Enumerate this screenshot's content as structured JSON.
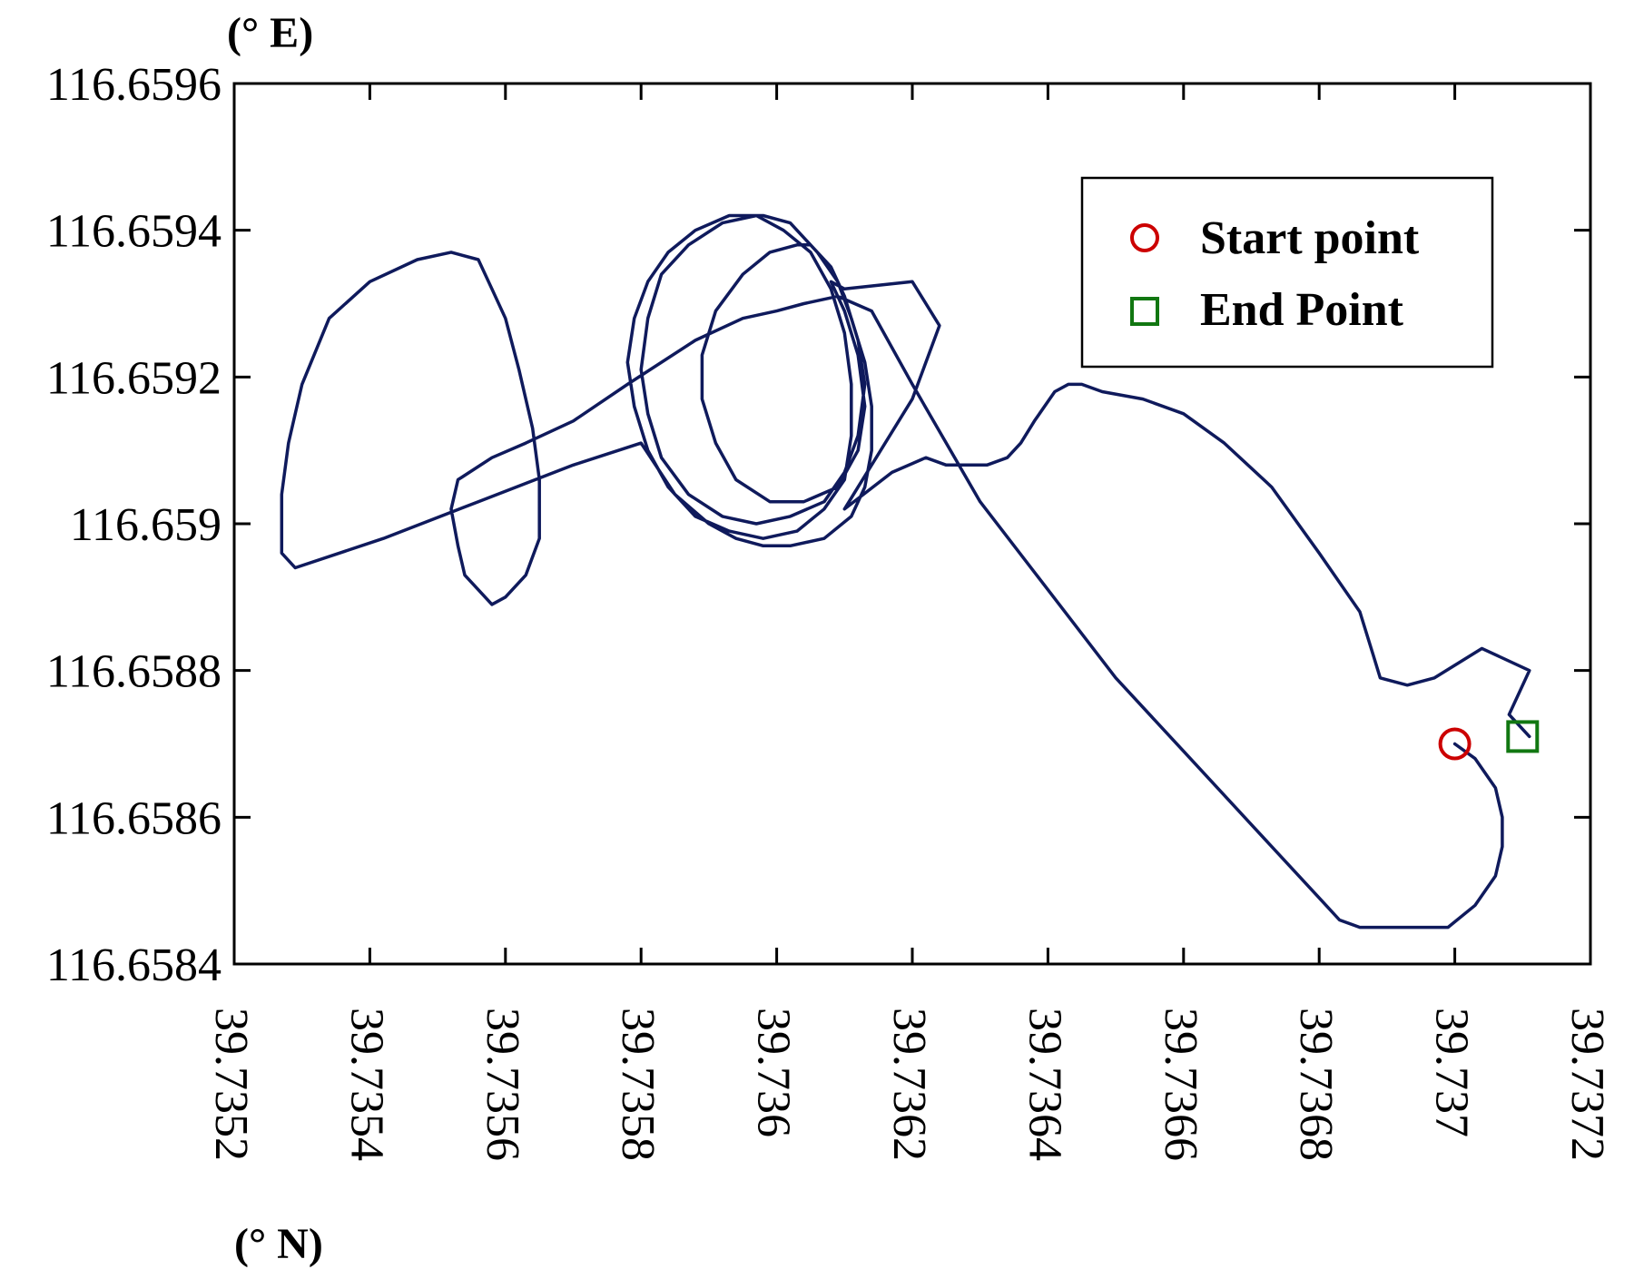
{
  "chart_data": {
    "type": "line",
    "title": "",
    "xlabel": "(°  N)",
    "ylabel": "(°  E)",
    "xlim": [
      39.7352,
      39.7372
    ],
    "ylim": [
      116.6584,
      116.6596
    ],
    "xticks": [
      "39.7352",
      "39.7354",
      "39.7356",
      "39.7358",
      "39.736",
      "39.7362",
      "39.7364",
      "39.7366",
      "39.7368",
      "39.737",
      "39.7372"
    ],
    "yticks": [
      "116.6584",
      "116.6586",
      "116.6588",
      "116.659",
      "116.6592",
      "116.6594",
      "116.6596"
    ],
    "grid": false,
    "legend": {
      "position": "top-right",
      "entries": [
        {
          "label": "Start point",
          "marker": "circle",
          "color": "#cc0000"
        },
        {
          "label": "End Point",
          "marker": "square",
          "color": "#117711"
        }
      ]
    },
    "line_color": "#0f1a5c",
    "start_point": {
      "x": 39.737,
      "y": 116.6587
    },
    "end_point": {
      "x": 39.7371,
      "y": 116.65871
    },
    "series": [
      {
        "name": "trajectory",
        "points": [
          [
            39.737,
            116.6587
          ],
          [
            39.73703,
            116.65868
          ],
          [
            39.73706,
            116.65864
          ],
          [
            39.73707,
            116.6586
          ],
          [
            39.73707,
            116.65856
          ],
          [
            39.73706,
            116.65852
          ],
          [
            39.73703,
            116.65848
          ],
          [
            39.73699,
            116.65845
          ],
          [
            39.73693,
            116.65845
          ],
          [
            39.73686,
            116.65845
          ],
          [
            39.73683,
            116.65846
          ],
          [
            39.73681,
            116.65848
          ],
          [
            39.7368,
            116.65849
          ],
          [
            39.7367,
            116.65859
          ],
          [
            39.7366,
            116.65869
          ],
          [
            39.7365,
            116.65879
          ],
          [
            39.7364,
            116.65891
          ],
          [
            39.7363,
            116.65903
          ],
          [
            39.7362,
            116.65919
          ],
          [
            39.73614,
            116.65929
          ],
          [
            39.73609,
            116.65931
          ],
          [
            39.73604,
            116.6593
          ],
          [
            39.736,
            116.65929
          ],
          [
            39.73595,
            116.65928
          ],
          [
            39.73588,
            116.65925
          ],
          [
            39.73578,
            116.65919
          ],
          [
            39.7357,
            116.65914
          ],
          [
            39.73563,
            116.65911
          ],
          [
            39.73558,
            116.65909
          ],
          [
            39.73553,
            116.65906
          ],
          [
            39.73552,
            116.65902
          ],
          [
            39.73553,
            116.65897
          ],
          [
            39.73554,
            116.65893
          ],
          [
            39.73556,
            116.65891
          ],
          [
            39.73558,
            116.65889
          ],
          [
            39.7356,
            116.6589
          ],
          [
            39.73563,
            116.65893
          ],
          [
            39.73565,
            116.65898
          ],
          [
            39.73565,
            116.65906
          ],
          [
            39.73564,
            116.65913
          ],
          [
            39.73562,
            116.65921
          ],
          [
            39.7356,
            116.65928
          ],
          [
            39.73558,
            116.65932
          ],
          [
            39.73556,
            116.65936
          ],
          [
            39.73552,
            116.65937
          ],
          [
            39.73547,
            116.65936
          ],
          [
            39.7354,
            116.65933
          ],
          [
            39.73534,
            116.65928
          ],
          [
            39.7353,
            116.65919
          ],
          [
            39.73528,
            116.65911
          ],
          [
            39.73527,
            116.65904
          ],
          [
            39.73527,
            116.65896
          ],
          [
            39.73529,
            116.65894
          ],
          [
            39.73542,
            116.65898
          ],
          [
            39.73556,
            116.65903
          ],
          [
            39.7357,
            116.65908
          ],
          [
            39.7358,
            116.65911
          ],
          [
            39.73585,
            116.65904
          ],
          [
            39.7359,
            116.659
          ],
          [
            39.73594,
            116.65898
          ],
          [
            39.73598,
            116.65897
          ],
          [
            39.73602,
            116.65897
          ],
          [
            39.73607,
            116.65898
          ],
          [
            39.73611,
            116.65901
          ],
          [
            39.73613,
            116.65905
          ],
          [
            39.73614,
            116.6591
          ],
          [
            39.73614,
            116.65916
          ],
          [
            39.73613,
            116.65922
          ],
          [
            39.73611,
            116.65928
          ],
          [
            39.73609,
            116.65933
          ],
          [
            39.73606,
            116.65937
          ],
          [
            39.73602,
            116.65941
          ],
          [
            39.73598,
            116.65942
          ],
          [
            39.73593,
            116.65942
          ],
          [
            39.73588,
            116.6594
          ],
          [
            39.73584,
            116.65937
          ],
          [
            39.73581,
            116.65933
          ],
          [
            39.73579,
            116.65928
          ],
          [
            39.73578,
            116.65922
          ],
          [
            39.73579,
            116.65916
          ],
          [
            39.73581,
            116.6591
          ],
          [
            39.73584,
            116.65905
          ],
          [
            39.73588,
            116.65901
          ],
          [
            39.73593,
            116.65899
          ],
          [
            39.73598,
            116.65898
          ],
          [
            39.73603,
            116.65899
          ],
          [
            39.73607,
            116.65902
          ],
          [
            39.7361,
            116.65906
          ],
          [
            39.73611,
            116.65912
          ],
          [
            39.73611,
            116.65919
          ],
          [
            39.7361,
            116.65926
          ],
          [
            39.73608,
            116.65932
          ],
          [
            39.73605,
            116.65937
          ],
          [
            39.73601,
            116.6594
          ],
          [
            39.73597,
            116.65942
          ],
          [
            39.73592,
            116.65941
          ],
          [
            39.73587,
            116.65938
          ],
          [
            39.73583,
            116.65934
          ],
          [
            39.73581,
            116.65928
          ],
          [
            39.7358,
            116.65921
          ],
          [
            39.73581,
            116.65915
          ],
          [
            39.73583,
            116.65909
          ],
          [
            39.73587,
            116.65904
          ],
          [
            39.73592,
            116.65901
          ],
          [
            39.73597,
            116.659
          ],
          [
            39.73602,
            116.65901
          ],
          [
            39.73607,
            116.65903
          ],
          [
            39.7361,
            116.65907
          ],
          [
            39.73612,
            116.65912
          ],
          [
            39.73613,
            116.65919
          ],
          [
            39.73612,
            116.65925
          ],
          [
            39.7361,
            116.65931
          ],
          [
            39.73608,
            116.65935
          ],
          [
            39.73605,
            116.65938
          ],
          [
            39.73603,
            116.65938
          ],
          [
            39.73599,
            116.65937
          ],
          [
            39.73595,
            116.65934
          ],
          [
            39.73591,
            116.65929
          ],
          [
            39.73589,
            116.65923
          ],
          [
            39.73589,
            116.65917
          ],
          [
            39.73591,
            116.65911
          ],
          [
            39.73594,
            116.65906
          ],
          [
            39.73599,
            116.65903
          ],
          [
            39.73604,
            116.65903
          ],
          [
            39.73609,
            116.65905
          ],
          [
            39.73612,
            116.6591
          ],
          [
            39.73613,
            116.65916
          ],
          [
            39.73612,
            116.65923
          ],
          [
            39.7361,
            116.65929
          ],
          [
            39.73608,
            116.65933
          ],
          [
            39.7361,
            116.65932
          ],
          [
            39.7362,
            116.65933
          ],
          [
            39.73624,
            116.65927
          ],
          [
            39.7362,
            116.65917
          ],
          [
            39.73612,
            116.65905
          ],
          [
            39.7361,
            116.65902
          ],
          [
            39.73617,
            116.65907
          ],
          [
            39.73622,
            116.65909
          ],
          [
            39.73625,
            116.65908
          ],
          [
            39.73629,
            116.65908
          ],
          [
            39.73631,
            116.65908
          ],
          [
            39.73634,
            116.65909
          ],
          [
            39.73636,
            116.65911
          ],
          [
            39.73638,
            116.65914
          ],
          [
            39.73641,
            116.65918
          ],
          [
            39.73643,
            116.65919
          ],
          [
            39.73645,
            116.65919
          ],
          [
            39.73648,
            116.65918
          ],
          [
            39.73654,
            116.65917
          ],
          [
            39.7366,
            116.65915
          ],
          [
            39.73666,
            116.65911
          ],
          [
            39.73673,
            116.65905
          ],
          [
            39.7368,
            116.65896
          ],
          [
            39.73686,
            116.65888
          ],
          [
            39.73688,
            116.65882
          ],
          [
            39.73689,
            116.65879
          ],
          [
            39.73693,
            116.65878
          ],
          [
            39.73697,
            116.65879
          ],
          [
            39.73704,
            116.65883
          ],
          [
            39.73711,
            116.6588
          ],
          [
            39.73708,
            116.65874
          ],
          [
            39.73711,
            116.65871
          ]
        ]
      }
    ]
  }
}
